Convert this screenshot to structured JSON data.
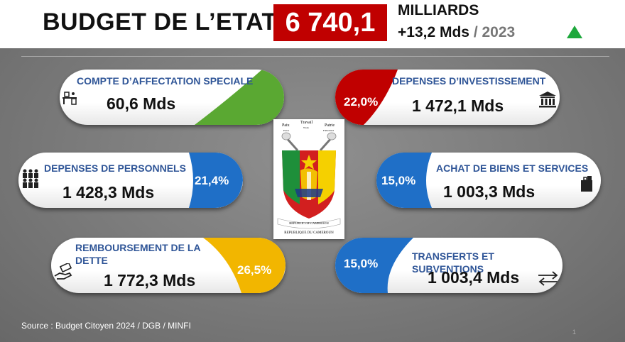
{
  "header": {
    "title": "BUDGET DE L’ETAT",
    "total": "6 740,1",
    "unit": "MILLIARDS",
    "change": "+13,2 Mds",
    "year": "/ 2023"
  },
  "items": [
    {
      "label": "COMPTE D’AFFECTATION SPECIALE",
      "amount": "60,6 Mds",
      "pct": null,
      "color": "#5aa832",
      "icon": "office-desk-icon"
    },
    {
      "label": "DEPENSES D’INVESTISSEMENT",
      "amount": "1 472,1 Mds",
      "pct": "22,0%",
      "color": "#c00000",
      "icon": "bank-icon"
    },
    {
      "label": "DEPENSES DE PERSONNELS",
      "amount": "1 428,3 Mds",
      "pct": "21,4%",
      "color": "#1f6fc7",
      "icon": "people-group-icon"
    },
    {
      "label": "ACHAT DE BIENS ET SERVICES",
      "amount": "1 003,3 Mds",
      "pct": "15,0%",
      "color": "#1f6fc7",
      "icon": "shopping-bag-icon"
    },
    {
      "label": "REMBOURSEMENT DE LA DETTE",
      "amount": "1 772,3 Mds",
      "pct": "26,5%",
      "color": "#f2b600",
      "icon": "hand-money-icon"
    },
    {
      "label": "TRANSFERTS ET SUBVENTIONS",
      "amount": "1 003,4 Mds",
      "pct": "15,0%",
      "color": "#1f6fc7",
      "icon": "transfer-arrows-icon"
    }
  ],
  "emblem": {
    "motto_1": "Paix",
    "motto_2": "Travail",
    "motto_3": "Patrie",
    "motto_1_en": "Peace",
    "motto_2_en": "Work",
    "motto_3_en": "Fatherland",
    "ribbon_1": "REPUBLIC OF CAMEROON",
    "ribbon_2": "REPUBLIQUE DU CAMEROUN"
  },
  "footer": {
    "source": "Source : Budget Citoyen 2024 / DGB / MINFI",
    "page": "1"
  }
}
